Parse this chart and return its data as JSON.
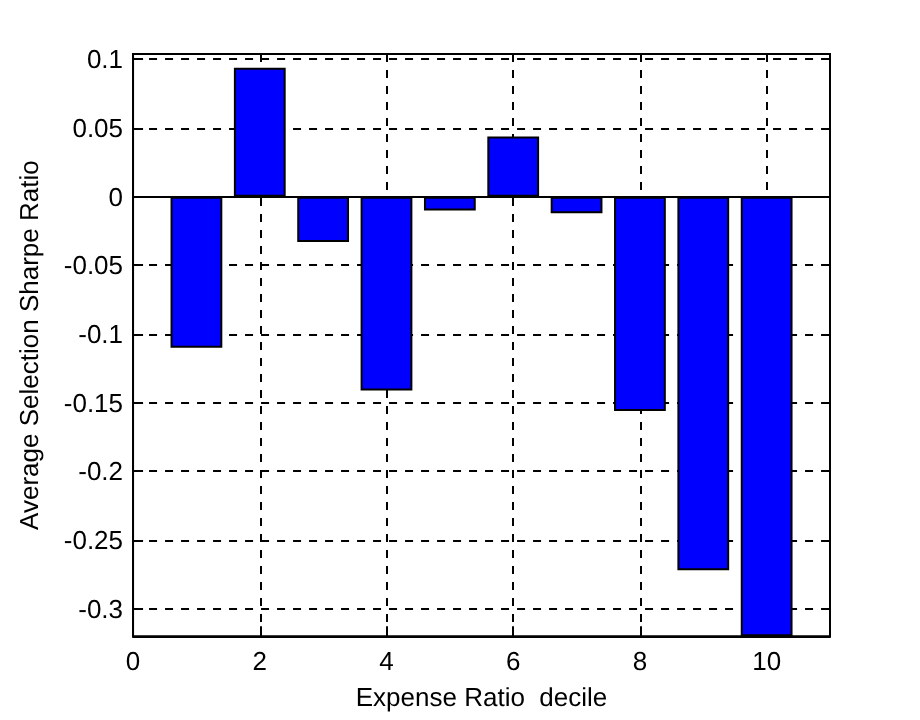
{
  "chart_data": {
    "type": "bar",
    "xlabel": "Expense Ratio  decile",
    "ylabel": "Average Selection Sharpe Ratio",
    "x": [
      1,
      2,
      3,
      4,
      5,
      6,
      7,
      8,
      9,
      10
    ],
    "values": [
      -0.11,
      0.094,
      -0.033,
      -0.141,
      -0.01,
      0.044,
      -0.012,
      -0.156,
      -0.272,
      -0.32
    ],
    "color": "#0000ff",
    "xlim": [
      0,
      11
    ],
    "xticks": [
      0,
      2,
      4,
      6,
      8,
      10
    ],
    "ylim": [
      -0.32,
      0.104
    ],
    "yticks": [
      -0.3,
      -0.25,
      -0.2,
      -0.15,
      -0.1,
      -0.05,
      0,
      0.05,
      0.1
    ],
    "grid": true
  }
}
